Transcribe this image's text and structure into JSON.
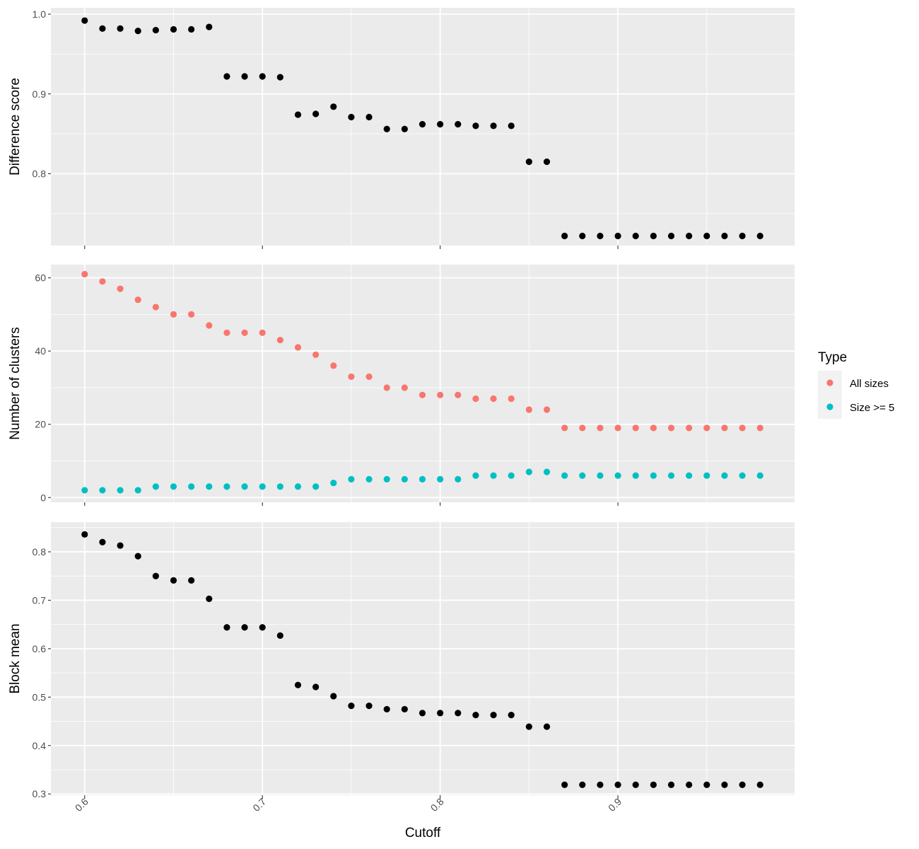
{
  "chart_data": {
    "type": "scatter",
    "x_title": "Cutoff",
    "x_lim": [
      0.581,
      0.9994
    ],
    "x_ticks": [
      0.6,
      0.7,
      0.8,
      0.9
    ],
    "x_tick_labels": [
      "0.6",
      "0.7",
      "0.8",
      "0.9"
    ],
    "x": [
      0.6,
      0.61,
      0.62,
      0.63,
      0.64,
      0.65,
      0.66,
      0.67,
      0.68,
      0.69,
      0.7,
      0.71,
      0.72,
      0.73,
      0.74,
      0.75,
      0.76,
      0.77,
      0.78,
      0.79,
      0.8,
      0.81,
      0.82,
      0.83,
      0.84,
      0.85,
      0.86,
      0.87,
      0.88,
      0.89,
      0.9,
      0.91,
      0.92,
      0.93,
      0.94,
      0.95,
      0.96,
      0.97,
      0.98
    ],
    "grid": true,
    "legend_position": "right",
    "panels": [
      {
        "ylabel": "Difference score",
        "ylim": [
          0.71,
          1.008
        ],
        "y_ticks": [
          0.8,
          0.9,
          1.0
        ],
        "y_tick_labels": [
          "0.8",
          "0.9",
          "1.0"
        ],
        "series": [
          {
            "color": "#000000",
            "values": [
              0.992,
              0.982,
              0.982,
              0.979,
              0.98,
              0.981,
              0.981,
              0.984,
              0.922,
              0.922,
              0.922,
              0.921,
              0.874,
              0.875,
              0.884,
              0.871,
              0.871,
              0.856,
              0.856,
              0.862,
              0.862,
              0.862,
              0.86,
              0.86,
              0.86,
              0.815,
              0.815,
              0.722,
              0.722,
              0.722,
              0.722,
              0.722,
              0.722,
              0.722,
              0.722,
              0.722,
              0.722,
              0.722,
              0.722
            ]
          }
        ]
      },
      {
        "ylabel": "Number of clusters",
        "ylim": [
          -1.3,
          63.6
        ],
        "y_ticks": [
          0,
          20,
          40,
          60
        ],
        "y_tick_labels": [
          "0",
          "20",
          "40",
          "60"
        ],
        "series": [
          {
            "name": "All sizes",
            "color": "#F8766D",
            "values": [
              61,
              59,
              57,
              54,
              52,
              50,
              50,
              47,
              45,
              45,
              45,
              43,
              41,
              39,
              36,
              33,
              33,
              30,
              30,
              28,
              28,
              28,
              27,
              27,
              27,
              24,
              24,
              19,
              19,
              19,
              19,
              19,
              19,
              19,
              19,
              19,
              19,
              19,
              19
            ]
          },
          {
            "name": "Size >= 5",
            "color": "#00BFC4",
            "values": [
              2,
              2,
              2,
              2,
              3,
              3,
              3,
              3,
              3,
              3,
              3,
              3,
              3,
              3,
              4,
              5,
              5,
              5,
              5,
              5,
              5,
              5,
              6,
              6,
              6,
              7,
              7,
              6,
              6,
              6,
              6,
              6,
              6,
              6,
              6,
              6,
              6,
              6,
              6
            ]
          }
        ]
      },
      {
        "ylabel": "Block mean",
        "ylim": [
          0.2974,
          0.8613
        ],
        "y_ticks": [
          0.3,
          0.4,
          0.5,
          0.6,
          0.7,
          0.8
        ],
        "y_tick_labels": [
          "0.3",
          "0.4",
          "0.5",
          "0.6",
          "0.7",
          "0.8"
        ],
        "series": [
          {
            "color": "#000000",
            "values": [
              0.836,
              0.82,
              0.813,
              0.791,
              0.75,
              0.741,
              0.741,
              0.703,
              0.644,
              0.644,
              0.644,
              0.627,
              0.525,
              0.521,
              0.502,
              0.482,
              0.482,
              0.475,
              0.475,
              0.467,
              0.467,
              0.467,
              0.463,
              0.463,
              0.463,
              0.439,
              0.439,
              0.319,
              0.319,
              0.319,
              0.319,
              0.319,
              0.319,
              0.319,
              0.319,
              0.319,
              0.319,
              0.319,
              0.319
            ]
          }
        ]
      }
    ],
    "legend": {
      "title": "Type",
      "entries": [
        {
          "label": "All sizes",
          "color": "#F8766D"
        },
        {
          "label": "Size >= 5",
          "color": "#00BFC4"
        }
      ]
    }
  }
}
